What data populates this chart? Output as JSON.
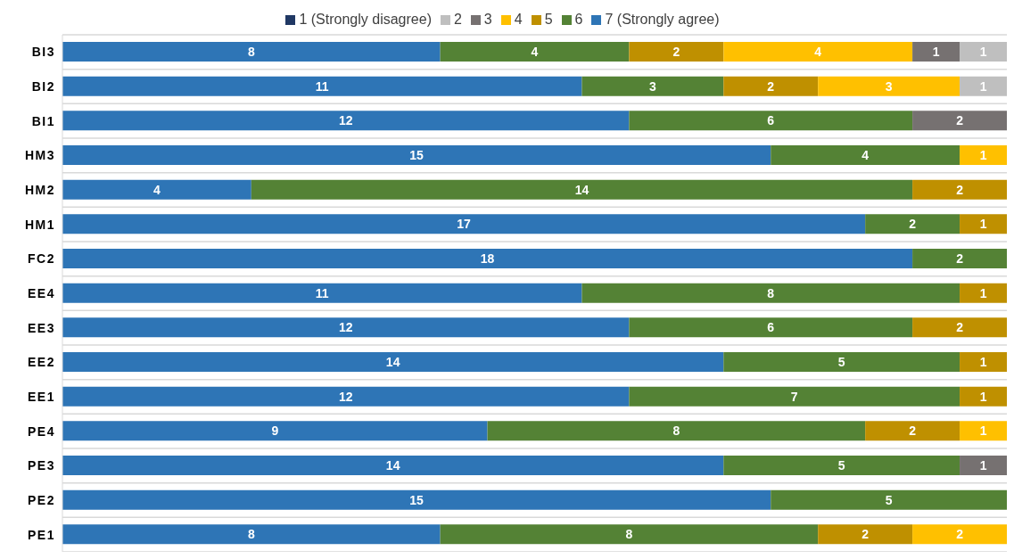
{
  "chart_data": {
    "type": "bar",
    "orientation": "horizontal",
    "stacked": true,
    "data_labels": true,
    "legend": "top",
    "grid": "y",
    "categories": [
      "BI3",
      "BI2",
      "BI1",
      "HM3",
      "HM2",
      "HM1",
      "FC2",
      "EE4",
      "EE3",
      "EE2",
      "EE1",
      "PE4",
      "PE3",
      "PE2",
      "PE1"
    ],
    "series": [
      {
        "name": "7 (Strongly agree)",
        "color": "#2e75b6",
        "values": [
          8,
          11,
          12,
          15,
          4,
          17,
          18,
          11,
          12,
          14,
          12,
          9,
          14,
          15,
          8
        ]
      },
      {
        "name": "6",
        "color": "#548235",
        "values": [
          4,
          3,
          6,
          4,
          14,
          2,
          2,
          8,
          6,
          5,
          7,
          8,
          5,
          5,
          8
        ]
      },
      {
        "name": "5",
        "color": "#bf9000",
        "values": [
          2,
          2,
          null,
          null,
          2,
          1,
          null,
          1,
          2,
          1,
          1,
          2,
          null,
          null,
          2
        ]
      },
      {
        "name": "4",
        "color": "#ffc000",
        "values": [
          4,
          3,
          null,
          1,
          null,
          null,
          null,
          null,
          null,
          null,
          null,
          1,
          null,
          null,
          2
        ]
      },
      {
        "name": "3",
        "color": "#767171",
        "values": [
          1,
          null,
          2,
          null,
          null,
          null,
          null,
          null,
          null,
          null,
          null,
          null,
          1,
          null,
          null
        ]
      },
      {
        "name": "2",
        "color": "#bfbfbf",
        "values": [
          1,
          1,
          null,
          null,
          null,
          null,
          null,
          null,
          null,
          null,
          null,
          null,
          null,
          null,
          null
        ]
      },
      {
        "name": "1 (Strongly disagree)",
        "color": "#203864",
        "values": [
          null,
          null,
          null,
          null,
          null,
          null,
          null,
          null,
          null,
          null,
          null,
          null,
          null,
          null,
          null
        ]
      }
    ]
  }
}
